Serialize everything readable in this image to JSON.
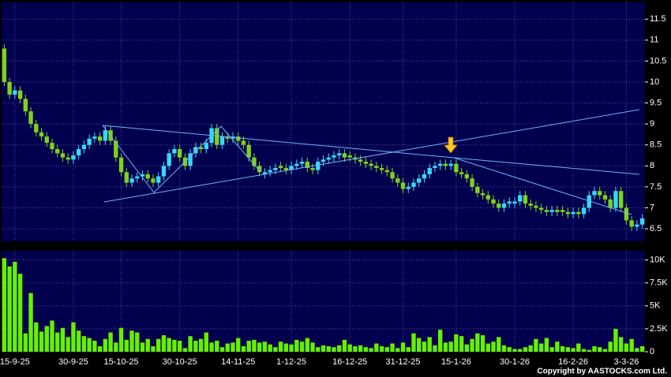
{
  "chart_data": [
    {
      "type": "candlestick",
      "categories": [
        null,
        null,
        "15-9-25",
        null,
        null,
        null,
        null,
        null,
        null,
        null,
        null,
        null,
        null,
        "30-9-25",
        null,
        null,
        null,
        null,
        null,
        null,
        null,
        null,
        "15-10-25",
        null,
        null,
        null,
        null,
        null,
        null,
        null,
        null,
        null,
        null,
        "30-10-25",
        null,
        null,
        null,
        null,
        null,
        null,
        null,
        null,
        null,
        null,
        "14-11-25",
        null,
        null,
        null,
        null,
        null,
        null,
        null,
        null,
        null,
        "1-12-25",
        null,
        null,
        null,
        null,
        null,
        null,
        null,
        null,
        null,
        null,
        "16-12-25",
        null,
        null,
        null,
        null,
        null,
        null,
        null,
        null,
        null,
        "31-12-25",
        null,
        null,
        null,
        null,
        null,
        null,
        null,
        null,
        null,
        "15-1-26",
        null,
        null,
        null,
        null,
        null,
        null,
        null,
        null,
        null,
        null,
        "30-1-26",
        null,
        null,
        null,
        null,
        null,
        null,
        null,
        null,
        null,
        null,
        "16-2-26",
        null,
        null,
        null,
        null,
        null,
        null,
        null,
        null,
        null,
        "3-3-26",
        null,
        null,
        null
      ],
      "open": [
        10.8,
        10.0,
        9.7,
        9.8,
        9.6,
        9.3,
        9.0,
        8.8,
        8.7,
        8.55,
        8.4,
        8.3,
        8.2,
        8.15,
        8.25,
        8.4,
        8.5,
        8.65,
        8.7,
        8.6,
        8.85,
        8.6,
        8.2,
        7.85,
        7.6,
        7.7,
        7.75,
        7.8,
        7.7,
        7.6,
        7.75,
        8.0,
        8.3,
        8.4,
        8.2,
        8.0,
        8.3,
        8.45,
        8.4,
        8.55,
        8.9,
        8.5,
        8.7,
        8.65,
        8.7,
        8.6,
        8.5,
        8.2,
        8.0,
        7.8,
        7.85,
        7.9,
        8.0,
        7.95,
        7.9,
        8.0,
        8.05,
        8.1,
        7.95,
        7.9,
        8.1,
        8.15,
        8.2,
        8.25,
        8.3,
        8.25,
        8.2,
        8.15,
        8.1,
        8.05,
        8.0,
        7.95,
        7.9,
        7.85,
        7.7,
        7.6,
        7.45,
        7.5,
        7.6,
        7.7,
        7.8,
        7.95,
        8.0,
        8.05,
        8.0,
        8.05,
        7.85,
        7.8,
        7.7,
        7.5,
        7.35,
        7.3,
        7.2,
        7.1,
        7.0,
        7.1,
        7.1,
        7.15,
        7.3,
        7.1,
        7.05,
        7.0,
        6.95,
        6.9,
        6.95,
        6.95,
        6.9,
        6.85,
        6.9,
        6.85,
        7.0,
        7.3,
        7.4,
        7.3,
        7.2,
        7.0,
        7.4,
        7.0,
        6.7,
        6.55,
        6.6
      ],
      "high": [
        10.9,
        10.1,
        9.9,
        9.9,
        9.7,
        9.4,
        9.1,
        8.9,
        8.8,
        8.65,
        8.5,
        8.4,
        8.3,
        8.35,
        8.5,
        8.6,
        8.75,
        8.8,
        8.8,
        8.95,
        8.95,
        8.7,
        8.3,
        7.95,
        7.8,
        7.85,
        7.9,
        7.9,
        7.8,
        7.85,
        8.1,
        8.4,
        8.5,
        8.5,
        8.3,
        8.4,
        8.55,
        8.55,
        8.65,
        9.0,
        9.0,
        8.8,
        8.8,
        8.8,
        8.8,
        8.7,
        8.6,
        8.3,
        8.1,
        7.95,
        8.0,
        8.05,
        8.1,
        8.05,
        8.1,
        8.15,
        8.2,
        8.2,
        8.05,
        8.2,
        8.25,
        8.3,
        8.35,
        8.4,
        8.4,
        8.35,
        8.3,
        8.25,
        8.2,
        8.15,
        8.1,
        8.05,
        8.0,
        7.95,
        7.8,
        7.7,
        7.6,
        7.7,
        7.8,
        7.9,
        8.05,
        8.1,
        8.15,
        8.15,
        8.15,
        8.15,
        7.95,
        7.9,
        7.8,
        7.6,
        7.45,
        7.4,
        7.3,
        7.2,
        7.2,
        7.25,
        7.25,
        7.4,
        7.4,
        7.2,
        7.15,
        7.1,
        7.05,
        7.05,
        7.05,
        7.05,
        7.0,
        7.0,
        7.0,
        7.1,
        7.4,
        7.5,
        7.5,
        7.4,
        7.3,
        7.5,
        7.5,
        7.1,
        6.8,
        6.7,
        6.85
      ],
      "low": [
        9.9,
        9.6,
        9.6,
        9.5,
        9.2,
        8.9,
        8.7,
        8.6,
        8.45,
        8.3,
        8.2,
        8.1,
        8.05,
        8.05,
        8.15,
        8.3,
        8.4,
        8.55,
        8.5,
        8.5,
        8.5,
        8.1,
        7.75,
        7.5,
        7.5,
        7.6,
        7.65,
        7.6,
        7.5,
        7.5,
        7.65,
        7.9,
        8.2,
        8.1,
        7.9,
        7.9,
        8.2,
        8.3,
        8.3,
        8.45,
        8.4,
        8.4,
        8.55,
        8.55,
        8.5,
        8.4,
        8.1,
        7.9,
        7.75,
        7.7,
        7.75,
        7.8,
        7.85,
        7.8,
        7.8,
        7.9,
        7.95,
        7.85,
        7.8,
        7.8,
        8.0,
        8.05,
        8.1,
        8.15,
        8.1,
        8.1,
        8.05,
        8.0,
        7.95,
        7.9,
        7.85,
        7.8,
        7.75,
        7.6,
        7.5,
        7.35,
        7.35,
        7.4,
        7.5,
        7.6,
        7.7,
        7.85,
        7.9,
        7.9,
        7.9,
        7.75,
        7.7,
        7.6,
        7.4,
        7.25,
        7.2,
        7.1,
        7.0,
        6.9,
        6.9,
        7.0,
        7.0,
        7.05,
        7.0,
        6.95,
        6.9,
        6.85,
        6.8,
        6.8,
        6.8,
        6.8,
        6.75,
        6.75,
        6.75,
        6.75,
        6.9,
        7.2,
        7.2,
        7.1,
        6.9,
        6.9,
        6.9,
        6.6,
        6.45,
        6.45,
        6.5
      ],
      "close": [
        10.0,
        9.7,
        9.8,
        9.6,
        9.3,
        9.0,
        8.8,
        8.7,
        8.55,
        8.4,
        8.3,
        8.2,
        8.15,
        8.25,
        8.4,
        8.5,
        8.65,
        8.7,
        8.6,
        8.85,
        8.6,
        8.2,
        7.85,
        7.6,
        7.7,
        7.75,
        7.8,
        7.7,
        7.6,
        7.75,
        8.0,
        8.3,
        8.4,
        8.2,
        8.0,
        8.3,
        8.45,
        8.4,
        8.55,
        8.9,
        8.5,
        8.7,
        8.65,
        8.7,
        8.6,
        8.5,
        8.2,
        8.0,
        7.85,
        7.85,
        7.9,
        7.95,
        7.95,
        7.9,
        8.0,
        8.05,
        8.1,
        7.95,
        7.9,
        8.1,
        8.15,
        8.2,
        8.25,
        8.3,
        8.2,
        8.2,
        8.15,
        8.1,
        8.05,
        8.0,
        7.95,
        7.9,
        7.85,
        7.7,
        7.6,
        7.45,
        7.5,
        7.6,
        7.7,
        7.8,
        7.95,
        8.0,
        8.05,
        8.0,
        8.05,
        7.85,
        7.8,
        7.7,
        7.5,
        7.35,
        7.3,
        7.2,
        7.1,
        7.0,
        7.1,
        7.15,
        7.15,
        7.3,
        7.1,
        7.05,
        7.0,
        6.95,
        6.9,
        6.95,
        6.9,
        6.9,
        6.85,
        6.9,
        6.85,
        7.0,
        7.3,
        7.4,
        7.3,
        7.2,
        7.0,
        7.4,
        7.0,
        6.7,
        6.55,
        6.6,
        6.75
      ],
      "up_color": "#38d8ff",
      "down_color": "#7fd21c",
      "ylim": [
        6.2,
        11.9
      ],
      "yticks": [
        6.5,
        7,
        7.5,
        8,
        8.5,
        9,
        9.5,
        10,
        10.5,
        11,
        11.5
      ],
      "grid": true
    },
    {
      "type": "bar",
      "values": [
        10200,
        9300,
        9800,
        8500,
        2000,
        6400,
        3200,
        2200,
        2800,
        3400,
        2100,
        2600,
        1600,
        3200,
        2300,
        1700,
        1500,
        1200,
        600,
        1400,
        2100,
        1000,
        2600,
        1300,
        2300,
        2100,
        1000,
        1400,
        600,
        1400,
        1800,
        1500,
        1300,
        1200,
        400,
        1700,
        1200,
        1400,
        2100,
        1000,
        1200,
        500,
        900,
        1000,
        1500,
        600,
        1200,
        1300,
        1000,
        1100,
        800,
        500,
        1100,
        900,
        800,
        1300,
        1100,
        1500,
        1000,
        500,
        700,
        600,
        500,
        700,
        1300,
        800,
        600,
        700,
        500,
        400,
        900,
        600,
        500,
        900,
        400,
        1000,
        500,
        2000,
        1500,
        1100,
        1600,
        700,
        2400,
        1000,
        1100,
        1900,
        1700,
        800,
        1400,
        2000,
        1800,
        900,
        1100,
        1600,
        700,
        500,
        300,
        300,
        500,
        700,
        1400,
        900,
        1500,
        500,
        1100,
        600,
        500,
        400,
        900,
        300,
        200,
        600,
        500,
        300,
        1100,
        2500,
        1600,
        900,
        1400,
        400,
        600
      ],
      "color": "#66f000",
      "ylim": [
        0,
        11000
      ],
      "yticks": [
        0,
        {
          "value": 2500,
          "label": "2.5K"
        },
        {
          "value": 5000,
          "label": "5K"
        },
        {
          "value": 7500,
          "label": "7.5K"
        },
        {
          "value": 10000,
          "label": "10K"
        }
      ],
      "grid": true
    }
  ],
  "copyright": "Copyright by AASTOCKS.com Ltd."
}
